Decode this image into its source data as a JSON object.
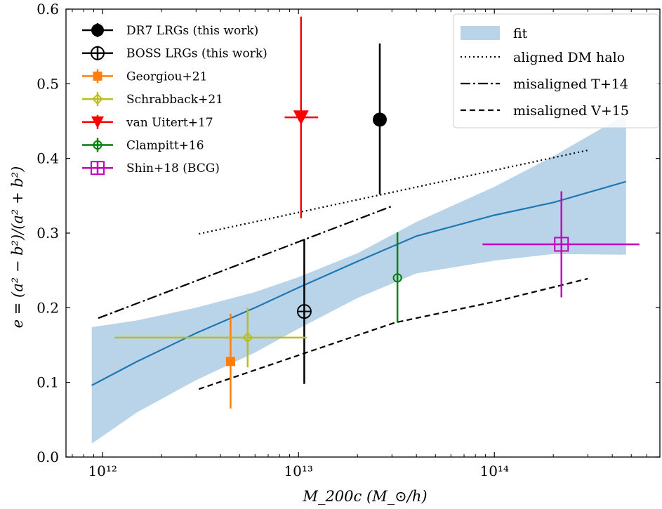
{
  "chart_data": {
    "type": "scatter",
    "xlabel": "M_200c (M_⊙/h)",
    "ylabel": "e = (a² − b²)/(a² + b²)",
    "xscale": "log",
    "xlim": [
      650000000000.0,
      700000000000000.0
    ],
    "ylim": [
      0.0,
      0.6
    ],
    "x_ticks": [
      {
        "value": 1000000000000.0,
        "label": "10¹²"
      },
      {
        "value": 10000000000000.0,
        "label": "10¹³"
      },
      {
        "value": 100000000000000.0,
        "label": "10¹⁴"
      }
    ],
    "y_ticks": [
      {
        "value": 0.0,
        "label": "0.0"
      },
      {
        "value": 0.1,
        "label": "0.1"
      },
      {
        "value": 0.2,
        "label": "0.2"
      },
      {
        "value": 0.3,
        "label": "0.3"
      },
      {
        "value": 0.4,
        "label": "0.4"
      },
      {
        "value": 0.5,
        "label": "0.5"
      },
      {
        "value": 0.6,
        "label": "0.6"
      }
    ],
    "fit": {
      "name": "fit",
      "color": "#1f77b4",
      "band_color": "#b9d3e9",
      "x": [
        880000000000.0,
        1500000000000.0,
        3000000000000.0,
        6000000000000.0,
        10000000000000.0,
        20000000000000.0,
        40000000000000.0,
        100000000000000.0,
        200000000000000.0,
        470000000000000.0
      ],
      "y": [
        0.096,
        0.128,
        0.166,
        0.2,
        0.227,
        0.262,
        0.296,
        0.324,
        0.341,
        0.369
      ],
      "lower": [
        0.018,
        0.06,
        0.103,
        0.14,
        0.172,
        0.213,
        0.246,
        0.263,
        0.272,
        0.271
      ],
      "upper": [
        0.174,
        0.183,
        0.2,
        0.221,
        0.241,
        0.273,
        0.315,
        0.362,
        0.403,
        0.459
      ]
    },
    "reference_lines": [
      {
        "name": "aligned DM halo",
        "style": "dotted",
        "x": [
          3100000000000.0,
          300000000000000.0
        ],
        "y": [
          0.299,
          0.411
        ]
      },
      {
        "name": "misaligned T+14",
        "style": "dashdot",
        "x": [
          950000000000.0,
          30000000000000.0
        ],
        "y": [
          0.186,
          0.336
        ]
      },
      {
        "name": "misaligned V+15",
        "style": "dashed",
        "x": [
          3100000000000.0,
          11000000000000.0,
          31000000000000.0,
          100000000000000.0,
          300000000000000.0
        ],
        "y": [
          0.091,
          0.14,
          0.18,
          0.208,
          0.239
        ]
      }
    ],
    "points": [
      {
        "name": "DR7 LRGs (this work)",
        "color": "#000000",
        "marker": "filled-circle",
        "x": 26000000000000.0,
        "y": 0.452,
        "yerr": [
          0.352,
          0.554
        ]
      },
      {
        "name": "BOSS LRGs (this work)",
        "color": "#000000",
        "marker": "circle-plus",
        "x": 10700000000000.0,
        "y": 0.195,
        "yerr": [
          0.098,
          0.292
        ]
      },
      {
        "name": "Georgiou+21",
        "color": "#ff7f0e",
        "marker": "filled-square",
        "x": 4500000000000.0,
        "y": 0.128,
        "yerr": [
          0.065,
          0.192
        ]
      },
      {
        "name": "Schrabback+21",
        "color": "#bcbd22",
        "marker": "diamond-plus",
        "x": 5500000000000.0,
        "y": 0.16,
        "yerr": [
          0.12,
          0.2
        ],
        "xerr": [
          1150000000000.0,
          11000000000000.0
        ]
      },
      {
        "name": "van Uitert+17",
        "color": "#ff0000",
        "marker": "filled-triangle-down",
        "x": 10300000000000.0,
        "y": 0.455,
        "yerr": [
          0.32,
          0.59
        ],
        "xerr": [
          8500000000000.0,
          12600000000000.0
        ]
      },
      {
        "name": "Clampitt+16",
        "color": "#008000",
        "marker": "open-circle",
        "x": 32000000000000.0,
        "y": 0.24,
        "yerr": [
          0.18,
          0.301
        ]
      },
      {
        "name": "Shin+18 (BCG)",
        "color": "#bf00bf",
        "marker": "square-plus",
        "x": 220000000000000.0,
        "y": 0.285,
        "yerr": [
          0.214,
          0.356
        ],
        "xerr": [
          87000000000000.0,
          550000000000000.0
        ]
      }
    ]
  }
}
